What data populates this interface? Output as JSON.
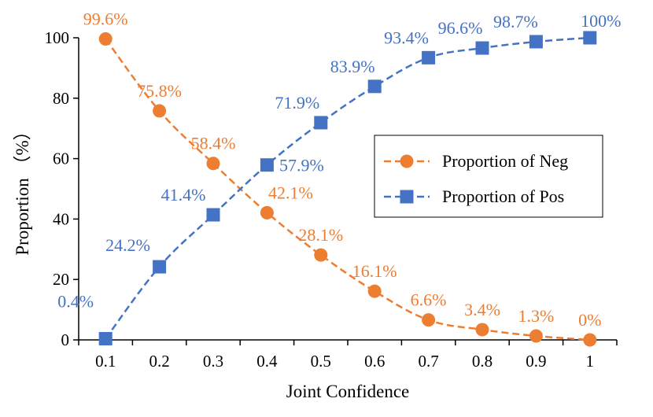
{
  "chart_data": {
    "type": "line",
    "title": "",
    "xlabel": "Joint Confidence",
    "ylabel": "Proportion （%）",
    "categories": [
      "0.1",
      "0.2",
      "0.3",
      "0.4",
      "0.5",
      "0.6",
      "0.7",
      "0.8",
      "0.9",
      "1"
    ],
    "x": [
      0.1,
      0.2,
      0.3,
      0.4,
      0.5,
      0.6,
      0.7,
      0.8,
      0.9,
      1.0
    ],
    "ylim": [
      0,
      100
    ],
    "yticks": [
      0,
      20,
      40,
      60,
      80,
      100
    ],
    "legend_position": "center-right",
    "series": [
      {
        "name": "Proportion of Neg",
        "color": "#ED7D31",
        "marker": "circle",
        "line_style": "dashed",
        "values": [
          99.6,
          75.8,
          58.4,
          42.1,
          28.1,
          16.1,
          6.6,
          3.4,
          1.3,
          0
        ],
        "labels": [
          "99.6%",
          "75.8%",
          "58.4%",
          "42.1%",
          "28.1%",
          "16.1%",
          "6.6%",
          "3.4%",
          "1.3%",
          "0%"
        ]
      },
      {
        "name": "Proportion of Pos",
        "color": "#4472C4",
        "marker": "square",
        "line_style": "dashed",
        "values": [
          0.4,
          24.2,
          41.4,
          57.9,
          71.9,
          83.9,
          93.4,
          96.6,
          98.7,
          100
        ],
        "labels": [
          "0.4%",
          "24.2%",
          "41.4%",
          "57.9%",
          "71.9%",
          "83.9%",
          "93.4%",
          "96.6%",
          "98.7%",
          "100%"
        ]
      }
    ]
  }
}
